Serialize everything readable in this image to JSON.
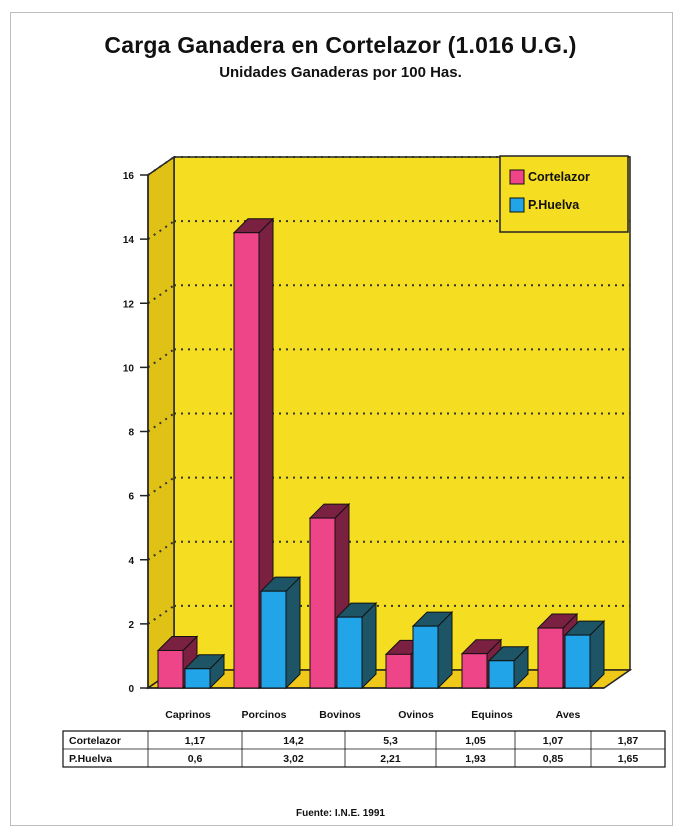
{
  "title": "Carga Ganadera en Cortelazor (1.016 U.G.)",
  "subtitle": "Unidades Ganaderas por 100 Has.",
  "source": "Fuente: I.N.E. 1991",
  "colors": {
    "plot_background": "#f5dd22",
    "cortelazor": "#ee4488",
    "cortelazor_side": "#7a2040",
    "p_huelva": "#22a4e8",
    "p_huelva_side": "#1d5566",
    "wall_left": "#e0c216",
    "floor": "#f0c81a"
  },
  "chart_data": {
    "type": "bar",
    "title": "Carga Ganadera en Cortelazor (1.016 U.G.)",
    "subtitle": "Unidades Ganaderas por 100 Has.",
    "categories": [
      "Caprinos",
      "Porcinos",
      "Bovinos",
      "Ovinos",
      "Equinos",
      "Aves"
    ],
    "series": [
      {
        "name": "Cortelazor",
        "values": [
          1.17,
          14.2,
          5.3,
          1.05,
          1.07,
          1.87
        ],
        "labels": [
          "1,17",
          "14,2",
          "5,3",
          "1,05",
          "1,07",
          "1,87"
        ]
      },
      {
        "name": "P.Huelva",
        "values": [
          0.6,
          3.02,
          2.21,
          1.93,
          0.85,
          1.65
        ],
        "labels": [
          "0,6",
          "3,02",
          "2,21",
          "1,93",
          "0,85",
          "1,65"
        ]
      }
    ],
    "ylim": [
      0,
      16
    ],
    "yticks": [
      0,
      2,
      4,
      6,
      8,
      10,
      12,
      14,
      16
    ],
    "grid": "dotted horizontal",
    "legend": "top-right",
    "style": "3d"
  }
}
